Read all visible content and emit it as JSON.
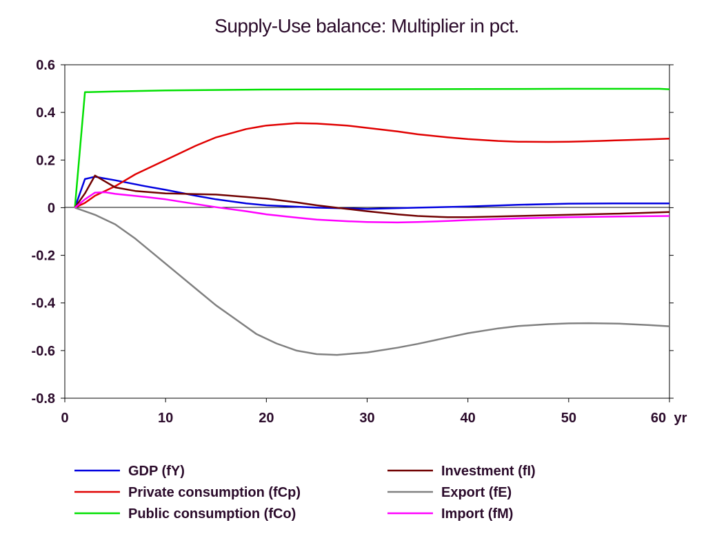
{
  "chart_data": {
    "type": "line",
    "title": "Supply-Use balance: Multiplier in pct.",
    "x_unit_label": "yr",
    "xlim": [
      0,
      60
    ],
    "ylim": [
      -0.8,
      0.6
    ],
    "x_ticks": [
      0,
      10,
      20,
      30,
      40,
      50,
      60
    ],
    "y_ticks": [
      0.6,
      0.4,
      0.2,
      0,
      -0.2,
      -0.4,
      -0.6,
      -0.8
    ],
    "y_tick_labels": [
      "0.6",
      "0.4",
      "0.2",
      "0",
      "-0.2",
      "-0.4",
      "-0.6",
      "-0.8"
    ],
    "grid": false,
    "zero_line": true,
    "legend_position": "bottom, two columns",
    "series": [
      {
        "name": "GDP (fY)",
        "color": "#0000e0",
        "points": [
          [
            1,
            0
          ],
          [
            2,
            0.12
          ],
          [
            3,
            0.13
          ],
          [
            5,
            0.115
          ],
          [
            8,
            0.09
          ],
          [
            10,
            0.075
          ],
          [
            13,
            0.05
          ],
          [
            15,
            0.035
          ],
          [
            18,
            0.018
          ],
          [
            20,
            0.01
          ],
          [
            25,
            0
          ],
          [
            30,
            -0.005
          ],
          [
            35,
            0
          ],
          [
            40,
            0.005
          ],
          [
            45,
            0.012
          ],
          [
            50,
            0.017
          ],
          [
            55,
            0.018
          ],
          [
            60,
            0.018
          ]
        ]
      },
      {
        "name": "Private consumption (fCp)",
        "color": "#e00000",
        "points": [
          [
            1,
            0
          ],
          [
            2,
            0.02
          ],
          [
            3,
            0.05
          ],
          [
            5,
            0.09
          ],
          [
            7,
            0.14
          ],
          [
            10,
            0.2
          ],
          [
            13,
            0.26
          ],
          [
            15,
            0.295
          ],
          [
            18,
            0.33
          ],
          [
            20,
            0.345
          ],
          [
            23,
            0.355
          ],
          [
            25,
            0.353
          ],
          [
            28,
            0.345
          ],
          [
            30,
            0.335
          ],
          [
            33,
            0.32
          ],
          [
            35,
            0.308
          ],
          [
            38,
            0.295
          ],
          [
            40,
            0.288
          ],
          [
            43,
            0.28
          ],
          [
            45,
            0.277
          ],
          [
            48,
            0.276
          ],
          [
            50,
            0.277
          ],
          [
            53,
            0.28
          ],
          [
            55,
            0.283
          ],
          [
            58,
            0.287
          ],
          [
            60,
            0.29
          ]
        ]
      },
      {
        "name": "Public consumption (fCo)",
        "color": "#00e000",
        "points": [
          [
            1,
            0
          ],
          [
            2,
            0.485
          ],
          [
            5,
            0.488
          ],
          [
            10,
            0.492
          ],
          [
            20,
            0.496
          ],
          [
            30,
            0.497
          ],
          [
            40,
            0.498
          ],
          [
            50,
            0.499
          ],
          [
            59,
            0.499
          ],
          [
            60,
            0.497
          ]
        ]
      },
      {
        "name": "Investment (fI)",
        "color": "#700000",
        "points": [
          [
            1,
            0
          ],
          [
            2,
            0.06
          ],
          [
            3,
            0.135
          ],
          [
            4,
            0.11
          ],
          [
            5,
            0.085
          ],
          [
            7,
            0.07
          ],
          [
            10,
            0.06
          ],
          [
            13,
            0.057
          ],
          [
            15,
            0.055
          ],
          [
            18,
            0.045
          ],
          [
            20,
            0.038
          ],
          [
            23,
            0.022
          ],
          [
            25,
            0.01
          ],
          [
            28,
            -0.005
          ],
          [
            30,
            -0.015
          ],
          [
            33,
            -0.028
          ],
          [
            35,
            -0.035
          ],
          [
            38,
            -0.04
          ],
          [
            40,
            -0.04
          ],
          [
            45,
            -0.035
          ],
          [
            50,
            -0.03
          ],
          [
            55,
            -0.025
          ],
          [
            60,
            -0.018
          ]
        ]
      },
      {
        "name": "Export (fE)",
        "color": "#808080",
        "points": [
          [
            1,
            0
          ],
          [
            3,
            -0.03
          ],
          [
            5,
            -0.07
          ],
          [
            7,
            -0.13
          ],
          [
            9,
            -0.2
          ],
          [
            11,
            -0.27
          ],
          [
            13,
            -0.34
          ],
          [
            15,
            -0.41
          ],
          [
            17,
            -0.47
          ],
          [
            19,
            -0.53
          ],
          [
            21,
            -0.57
          ],
          [
            23,
            -0.6
          ],
          [
            25,
            -0.615
          ],
          [
            27,
            -0.618
          ],
          [
            30,
            -0.608
          ],
          [
            33,
            -0.588
          ],
          [
            35,
            -0.572
          ],
          [
            38,
            -0.545
          ],
          [
            40,
            -0.527
          ],
          [
            43,
            -0.507
          ],
          [
            45,
            -0.497
          ],
          [
            48,
            -0.489
          ],
          [
            50,
            -0.486
          ],
          [
            52,
            -0.485
          ],
          [
            55,
            -0.487
          ],
          [
            58,
            -0.493
          ],
          [
            60,
            -0.498
          ]
        ]
      },
      {
        "name": "Import (fM)",
        "color": "#ff00ff",
        "points": [
          [
            1,
            0
          ],
          [
            2,
            0.035
          ],
          [
            3,
            0.063
          ],
          [
            4,
            0.065
          ],
          [
            5,
            0.058
          ],
          [
            8,
            0.045
          ],
          [
            10,
            0.035
          ],
          [
            13,
            0.015
          ],
          [
            15,
            0.002
          ],
          [
            18,
            -0.015
          ],
          [
            20,
            -0.028
          ],
          [
            23,
            -0.042
          ],
          [
            25,
            -0.05
          ],
          [
            28,
            -0.057
          ],
          [
            30,
            -0.06
          ],
          [
            33,
            -0.062
          ],
          [
            35,
            -0.06
          ],
          [
            38,
            -0.056
          ],
          [
            40,
            -0.052
          ],
          [
            45,
            -0.045
          ],
          [
            50,
            -0.04
          ],
          [
            55,
            -0.037
          ],
          [
            60,
            -0.035
          ]
        ]
      }
    ]
  }
}
